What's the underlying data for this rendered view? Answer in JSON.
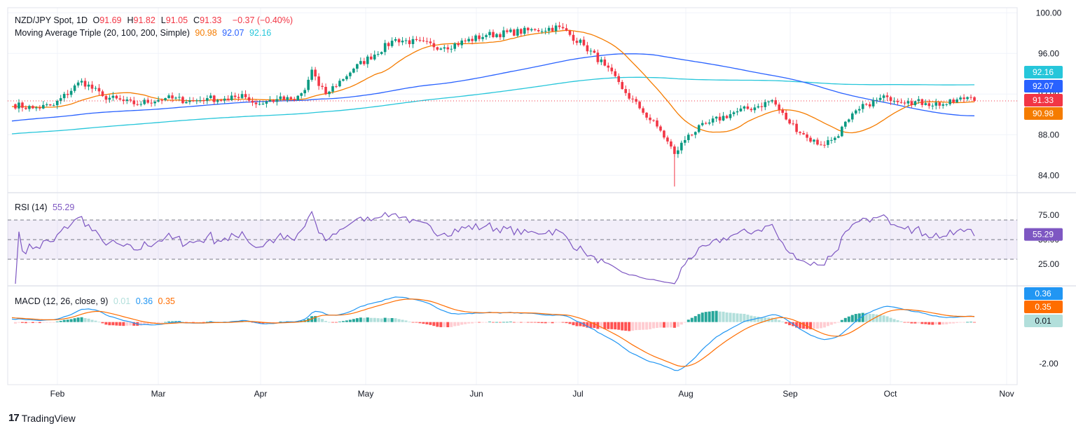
{
  "header": {
    "symbol": "NZD/JPY Spot, 1D",
    "ohlc": [
      {
        "label": "O",
        "value": "91.69"
      },
      {
        "label": "H",
        "value": "91.82"
      },
      {
        "label": "L",
        "value": "91.05"
      },
      {
        "label": "C",
        "value": "91.33"
      }
    ],
    "change": "−0.37 (−0.40%)",
    "ma_label": "Moving Average Triple (20, 100, 200, Simple)",
    "ma_values": [
      "90.98",
      "92.07",
      "92.16"
    ]
  },
  "rsi_legend": {
    "label": "RSI (14)",
    "value": "55.29"
  },
  "macd_legend": {
    "label": "MACD (12, 26, close, 9)",
    "values": [
      "0.01",
      "0.36",
      "0.35"
    ]
  },
  "footer": {
    "brand": "TradingView"
  },
  "colors": {
    "up": "#089981",
    "down": "#f23645",
    "ma20": "#f57c00",
    "ma100": "#2962ff",
    "ma200": "#26c6da",
    "rsi": "#7e57c2",
    "macd": "#2196f3",
    "signal": "#ff6d00",
    "hist_up_strong": "#26a69a",
    "hist_up_weak": "#b2dfdb",
    "hist_down_strong": "#ff5252",
    "hist_down_weak": "#ffcdd2",
    "grid": "#f0f3fa"
  },
  "chart_data": [
    {
      "type": "candlestick",
      "title": "NZD/JPY Spot, 1D",
      "x_ticks": [
        "Feb",
        "Mar",
        "Apr",
        "May",
        "Jun",
        "Jul",
        "Aug",
        "Sep",
        "Oct",
        "Nov"
      ],
      "y_ticks": [
        "100.00",
        "96.00",
        "92.00",
        "88.00",
        "84.00"
      ],
      "ylim": [
        82.5,
        100.5
      ],
      "anchors": [
        [
          0,
          91.0
        ],
        [
          6,
          90.6
        ],
        [
          12,
          90.9
        ],
        [
          20,
          93.3
        ],
        [
          26,
          91.8
        ],
        [
          35,
          91.0
        ],
        [
          44,
          91.6
        ],
        [
          52,
          91.3
        ],
        [
          56,
          91.6
        ],
        [
          62,
          91.4
        ],
        [
          66,
          92.0
        ],
        [
          70,
          91.0
        ],
        [
          76,
          91.5
        ],
        [
          81,
          91.4
        ],
        [
          84,
          92.4
        ],
        [
          86,
          94.4
        ],
        [
          88,
          92.8
        ],
        [
          90,
          92.0
        ],
        [
          98,
          94.5
        ],
        [
          110,
          97.4
        ],
        [
          124,
          96.6
        ],
        [
          136,
          97.8
        ],
        [
          150,
          98.3
        ],
        [
          157,
          98.6
        ],
        [
          164,
          96.8
        ],
        [
          170,
          94.8
        ],
        [
          176,
          92.1
        ],
        [
          180,
          90.6
        ],
        [
          186,
          88.4
        ],
        [
          190,
          86.1
        ],
        [
          194,
          88.0
        ],
        [
          200,
          89.2
        ],
        [
          208,
          90.3
        ],
        [
          214,
          90.8
        ],
        [
          218,
          91.4
        ],
        [
          222,
          89.5
        ],
        [
          228,
          87.7
        ],
        [
          232,
          87.0
        ],
        [
          236,
          87.7
        ],
        [
          240,
          89.5
        ],
        [
          245,
          91.0
        ],
        [
          251,
          91.7
        ],
        [
          257,
          91.3
        ],
        [
          262,
          91.1
        ],
        [
          268,
          91.0
        ],
        [
          274,
          91.7
        ],
        [
          276,
          91.33
        ]
      ],
      "series_last": [
        {
          "name": "MA 20",
          "last": 90.98
        },
        {
          "name": "MA 100",
          "last": 92.07
        },
        {
          "name": "MA 200",
          "last": 92.16
        }
      ],
      "last_price": 91.33
    },
    {
      "type": "line",
      "title": "RSI (14)",
      "y_ticks": [
        "75.00",
        "50.00",
        "25.00"
      ],
      "ylim": [
        5,
        95
      ],
      "bands": [
        30,
        70
      ],
      "mid": 50,
      "last": 55.29
    },
    {
      "type": "bar",
      "title": "MACD (12, 26, close, 9)",
      "y_ticks": [
        "-2.00"
      ],
      "ylim": [
        -3.0,
        1.6
      ],
      "last": {
        "histogram": 0.01,
        "macd": 0.36,
        "signal": 0.35
      }
    }
  ],
  "price_tags": {
    "ma200": "92.16",
    "ma100": "92.07",
    "close": "91.33",
    "ma20": "90.98",
    "rsi": "55.29",
    "macd": "0.36",
    "signal": "0.35",
    "hist": "0.01"
  }
}
